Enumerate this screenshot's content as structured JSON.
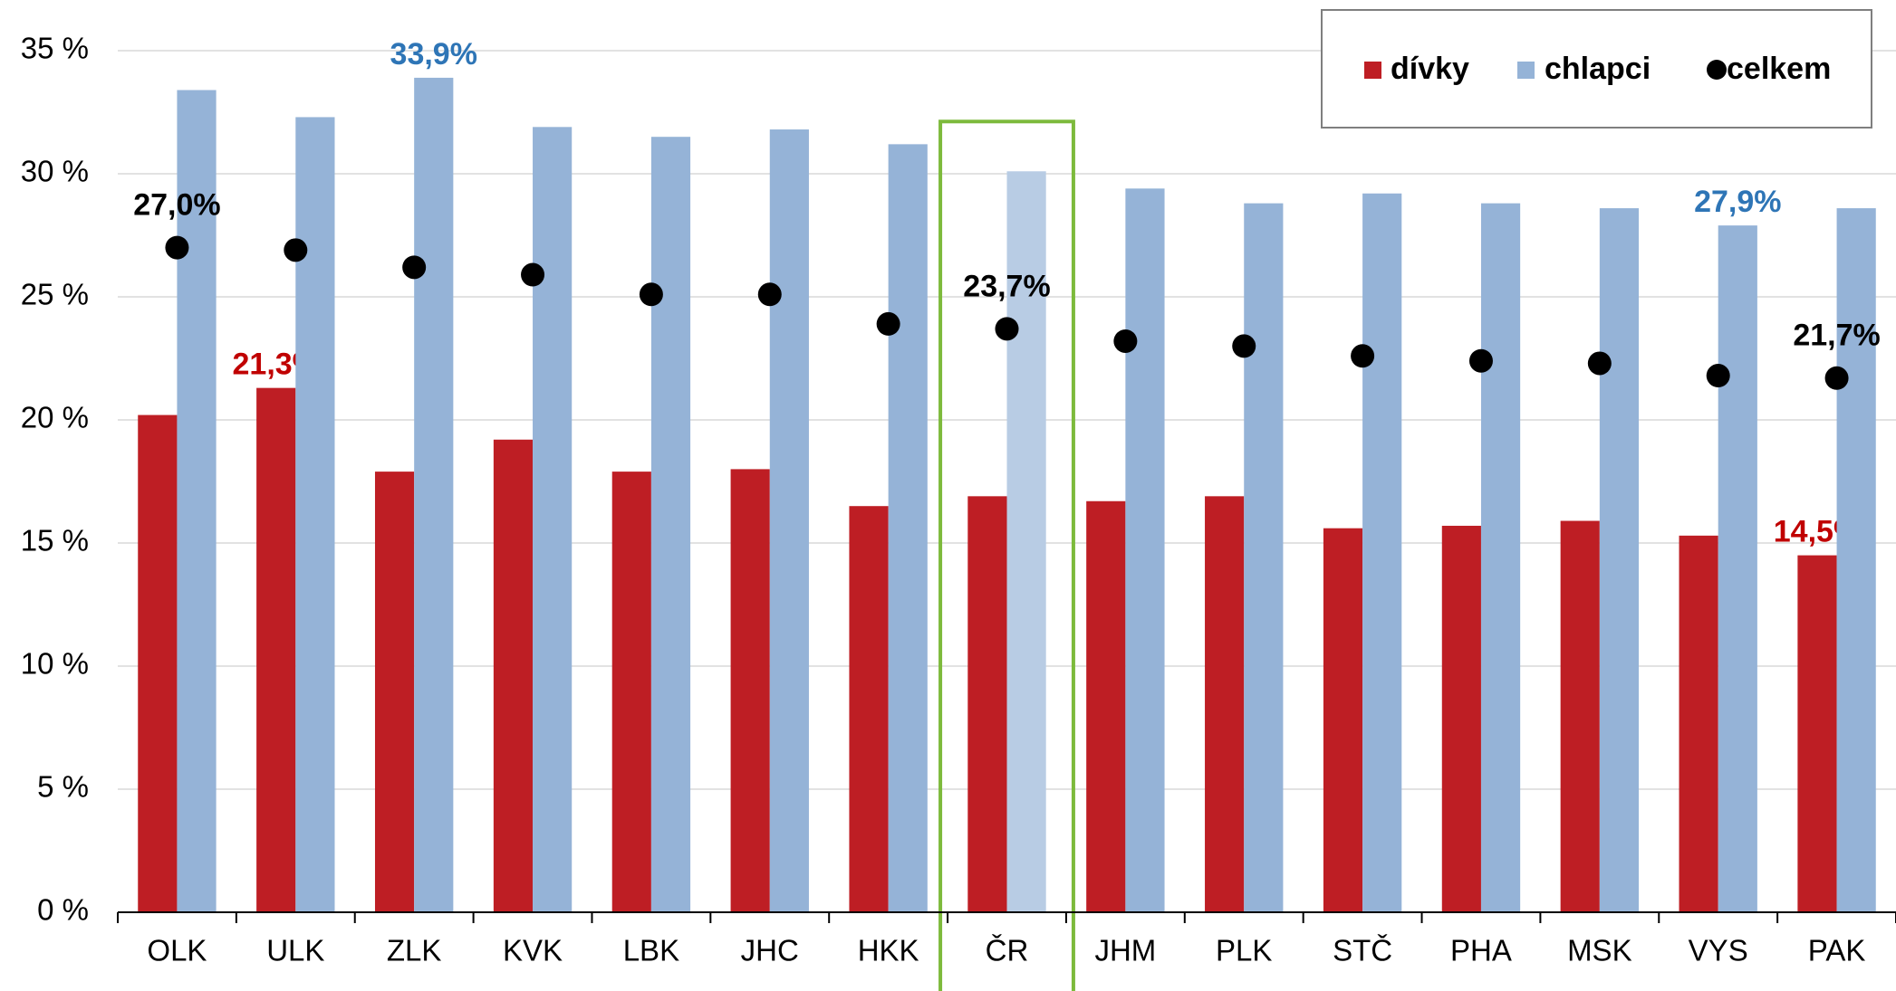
{
  "chart_data": {
    "type": "bar",
    "categories": [
      "OLK",
      "ULK",
      "ZLK",
      "KVK",
      "LBK",
      "JHC",
      "HKK",
      "ČR",
      "JHM",
      "PLK",
      "STČ",
      "PHA",
      "MSK",
      "VYS",
      "PAK"
    ],
    "series": [
      {
        "name": "dívky",
        "color": "#be1e24",
        "label_color": "#c00000",
        "values": [
          20.2,
          21.3,
          17.9,
          19.2,
          17.9,
          18.0,
          16.5,
          16.9,
          16.7,
          16.9,
          15.6,
          15.7,
          15.9,
          15.3,
          14.5
        ],
        "value_labels": [
          null,
          "21,3%",
          null,
          null,
          null,
          null,
          null,
          null,
          null,
          null,
          null,
          null,
          null,
          null,
          "14,5%"
        ]
      },
      {
        "name": "chlapci",
        "color": "#95b3d7",
        "label_color": "#2e75b6",
        "values": [
          33.4,
          32.3,
          33.9,
          31.9,
          31.5,
          31.8,
          31.2,
          30.1,
          29.4,
          28.8,
          29.2,
          28.8,
          28.6,
          27.9,
          28.6
        ],
        "value_labels": [
          null,
          null,
          "33,9%",
          null,
          null,
          null,
          null,
          null,
          null,
          null,
          null,
          null,
          null,
          "27,9%",
          null
        ]
      },
      {
        "name": "celkem",
        "type": "scatter",
        "color": "#000000",
        "label_color": "#000000",
        "values": [
          27.0,
          26.9,
          26.2,
          25.9,
          25.1,
          25.1,
          23.9,
          23.7,
          23.2,
          23.0,
          22.6,
          22.4,
          22.3,
          21.8,
          21.7
        ],
        "value_labels": [
          "27,0%",
          null,
          null,
          null,
          null,
          null,
          null,
          "23,7%",
          null,
          null,
          null,
          null,
          null,
          null,
          "21,7%"
        ]
      }
    ],
    "highlight": 7,
    "highlight_color": "#b8cce4",
    "highlight_box_color": "#7dba3c",
    "ylim": [
      0,
      35
    ],
    "yticks": [
      {
        "value": 0,
        "label": "0 %"
      },
      {
        "value": 5,
        "label": "5 %"
      },
      {
        "value": 10,
        "label": "10 %"
      },
      {
        "value": 15,
        "label": "15 %"
      },
      {
        "value": 20,
        "label": "20 %"
      },
      {
        "value": 25,
        "label": "25 %"
      },
      {
        "value": 30,
        "label": "30 %"
      },
      {
        "value": 35,
        "label": "35 %"
      }
    ],
    "grid": true,
    "legend": "upper right"
  }
}
